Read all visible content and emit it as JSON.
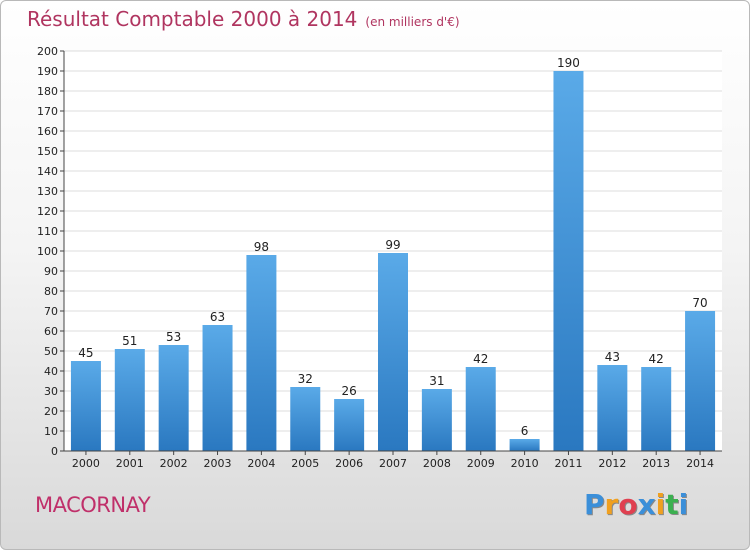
{
  "header": {
    "title": "Résultat Comptable 2000 à 2014",
    "subtitle": "(en milliers d'€)"
  },
  "footer": {
    "town": "MACORNAY",
    "logo": {
      "letters": [
        "P",
        "r",
        "o",
        "x",
        "i",
        "t",
        "i"
      ],
      "colors": [
        "#3b8fd9",
        "#f0a020",
        "#e04050",
        "#3b8fd9",
        "#f0a020",
        "#3bb050",
        "#3b8fd9"
      ]
    }
  },
  "chart_data": {
    "type": "bar",
    "categories": [
      "2000",
      "2001",
      "2002",
      "2003",
      "2004",
      "2005",
      "2006",
      "2007",
      "2008",
      "2009",
      "2010",
      "2011",
      "2012",
      "2013",
      "2014"
    ],
    "values": [
      45,
      51,
      53,
      63,
      98,
      32,
      26,
      99,
      31,
      42,
      6,
      190,
      43,
      42,
      70
    ],
    "title": "Résultat Comptable 2000 à 2014",
    "subtitle": "(en milliers d'€)",
    "ylim": [
      0,
      200
    ],
    "ytick_step": 10,
    "grid": true,
    "bar_color_top": "#5aaae8",
    "bar_color_bottom": "#2a78c0",
    "grid_color": "#dcdcdc"
  }
}
